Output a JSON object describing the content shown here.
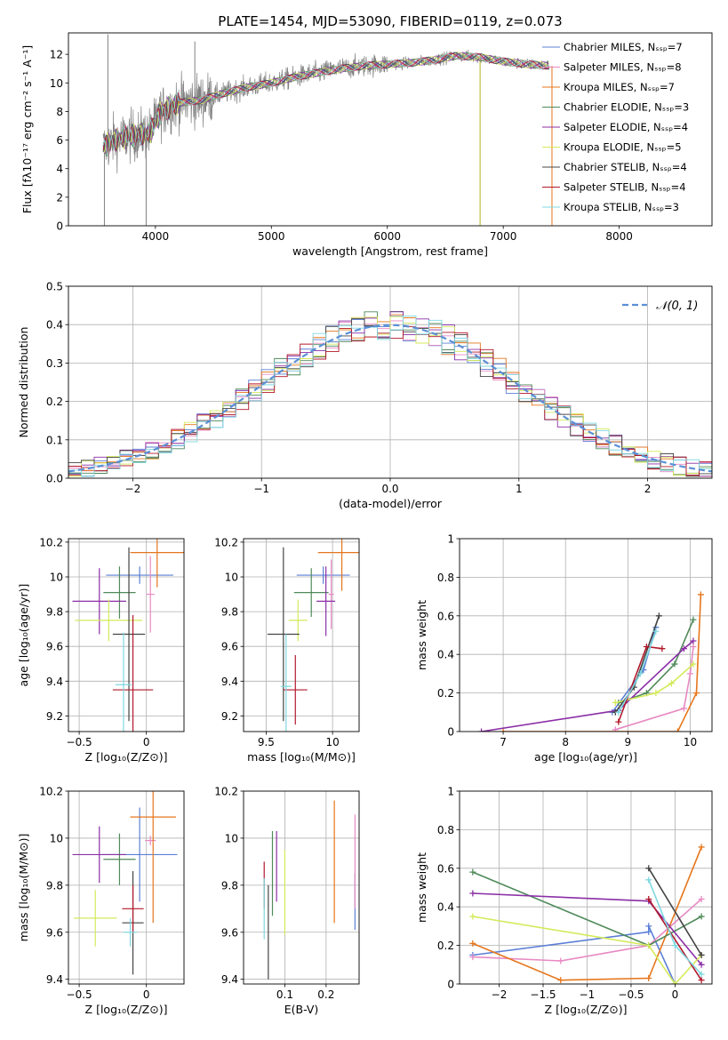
{
  "colors": [
    "#5b7fd6",
    "#e78ac3",
    "#e6761c",
    "#4f8a5a",
    "#8b2fa6",
    "#d4ea5a",
    "#444444",
    "#b2182b",
    "#7fd8e0"
  ],
  "chart_data": [
    {
      "id": "spectrum",
      "type": "line",
      "title": "PLATE=1454, MJD=53090, FIBERID=0119, z=0.073",
      "xlabel": "wavelength [Angstrom, rest frame]",
      "ylabel": "Flux [fλ10⁻¹⁷ erg cm⁻² s⁻¹ A⁻¹]",
      "xlim": [
        3250,
        8800
      ],
      "ylim": [
        0,
        13.5
      ],
      "xticks": [
        4000,
        5000,
        6000,
        7000,
        8000
      ],
      "yticks": [
        0,
        2,
        4,
        6,
        8,
        10,
        12
      ],
      "legend_loc": "right",
      "legend": [
        "Chabrier MILES, Nₛₛₚ=7",
        "Salpeter MILES, Nₛₛₚ=8",
        "Kroupa MILES, Nₛₛₚ=7",
        "Chabrier ELODIE, Nₛₛₚ=3",
        "Salpeter ELODIE, Nₛₛₚ=4",
        "Kroupa ELODIE, Nₛₛₚ=5",
        "Chabrier STELIB, Nₛₛₚ=4",
        "Salpeter STELIB, Nₛₛₚ=4",
        "Kroupa STELIB, Nₛₛₚ=3"
      ],
      "data_color": "#808080",
      "continuum": [
        [
          3550,
          5.5
        ],
        [
          3650,
          6.0
        ],
        [
          3800,
          6.3
        ],
        [
          3950,
          6.5
        ],
        [
          4050,
          8.0
        ],
        [
          4200,
          8.6
        ],
        [
          4400,
          8.8
        ],
        [
          4600,
          9.3
        ],
        [
          4800,
          9.7
        ],
        [
          5000,
          10.0
        ],
        [
          5200,
          10.4
        ],
        [
          5400,
          10.7
        ],
        [
          5600,
          11.0
        ],
        [
          5800,
          11.2
        ],
        [
          6000,
          11.3
        ],
        [
          6200,
          11.4
        ],
        [
          6400,
          11.6
        ],
        [
          6600,
          11.9
        ],
        [
          6800,
          11.8
        ],
        [
          7000,
          11.5
        ],
        [
          7200,
          11.3
        ],
        [
          7400,
          11.2
        ]
      ],
      "spikes": [
        [
          3560,
          0.0
        ],
        [
          3590,
          13.4
        ],
        [
          3920,
          0.0
        ],
        [
          4340,
          12.9
        ],
        [
          6800,
          0.0
        ],
        [
          7420,
          0.0
        ]
      ]
    },
    {
      "id": "residuals",
      "type": "area",
      "xlabel": "(data-model)/error",
      "ylabel": "Normed distribution",
      "xlim": [
        -2.5,
        2.5
      ],
      "ylim": [
        0,
        0.5
      ],
      "xticks": [
        -2,
        -1,
        0,
        1,
        2
      ],
      "yticks": [
        0.0,
        0.1,
        0.2,
        0.3,
        0.4,
        0.5
      ],
      "grid": true,
      "legend_loc": "top-right",
      "legend_label": "𝒩(0, 1)",
      "reference": {
        "name": "𝒩(0, 1)",
        "mean": 0,
        "sd": 1
      },
      "bin_width": 0.1
    },
    {
      "id": "age_vs_Z",
      "type": "scatter",
      "xlabel": "Z [log₁₀(Z/Z⊙)]",
      "ylabel": "age  [log₁₀(age/yr)]",
      "xlim": [
        -0.58,
        0.28
      ],
      "ylim": [
        9.11,
        10.22
      ],
      "xticks": [
        -0.5,
        0.0
      ],
      "yticks": [
        9.2,
        9.4,
        9.6,
        9.8,
        10.0,
        10.2
      ],
      "grid": true,
      "points": [
        {
          "x": -0.05,
          "y": 10.01,
          "xerr": 0.25,
          "yerr": 0.05
        },
        {
          "x": 0.03,
          "y": 9.9,
          "xerr": 0.03,
          "yerr": 0.22
        },
        {
          "x": 0.08,
          "y": 10.14,
          "xerr": 0.2,
          "yerr": 0.2
        },
        {
          "x": -0.2,
          "y": 9.91,
          "xerr": 0.12,
          "yerr": 0.15
        },
        {
          "x": -0.35,
          "y": 9.86,
          "xerr": 0.2,
          "yerr": 0.19
        },
        {
          "x": -0.28,
          "y": 9.75,
          "xerr": 0.25,
          "yerr": 0.12
        },
        {
          "x": -0.13,
          "y": 9.67,
          "xerr": 0.12,
          "yerr": 0.5
        },
        {
          "x": -0.1,
          "y": 9.35,
          "xerr": 0.15,
          "yerr": 0.43
        },
        {
          "x": -0.17,
          "y": 9.38,
          "xerr": 0.06,
          "yerr": 0.3
        }
      ]
    },
    {
      "id": "age_vs_mass",
      "type": "scatter",
      "xlabel": "mass [log₁₀(M/M⊙)]",
      "ylabel": "",
      "xlim": [
        9.33,
        10.2
      ],
      "ylim": [
        9.11,
        10.22
      ],
      "xticks": [
        9.5,
        10.0
      ],
      "yticks": [
        9.2,
        9.4,
        9.6,
        9.8,
        10.0,
        10.2
      ],
      "grid": true,
      "points": [
        {
          "x": 9.93,
          "y": 10.01,
          "xerr": 0.2,
          "yerr": 0.05
        },
        {
          "x": 9.99,
          "y": 9.9,
          "xerr": 0.02,
          "yerr": 0.2
        },
        {
          "x": 10.07,
          "y": 10.14,
          "xerr": 0.18,
          "yerr": 0.22
        },
        {
          "x": 9.84,
          "y": 9.91,
          "xerr": 0.13,
          "yerr": 0.14
        },
        {
          "x": 9.95,
          "y": 9.86,
          "xerr": 0.07,
          "yerr": 0.2
        },
        {
          "x": 9.74,
          "y": 9.75,
          "xerr": 0.07,
          "yerr": 0.12
        },
        {
          "x": 9.63,
          "y": 9.67,
          "xerr": 0.12,
          "yerr": 0.5
        },
        {
          "x": 9.72,
          "y": 9.35,
          "xerr": 0.09,
          "yerr": 0.2
        },
        {
          "x": 9.65,
          "y": 9.37,
          "xerr": 0.04,
          "yerr": 0.3
        }
      ]
    },
    {
      "id": "weight_vs_age",
      "type": "line",
      "xlabel": "age  [log₁₀(age/yr)]",
      "ylabel": "mass weight",
      "xlim": [
        6.3,
        10.35
      ],
      "ylim": [
        0,
        1.0
      ],
      "xticks": [
        7,
        8,
        9,
        10
      ],
      "yticks": [
        0.0,
        0.2,
        0.4,
        0.6,
        0.8,
        1.0
      ],
      "grid": true,
      "series": [
        {
          "values": [
            [
              8.75,
              0.1
            ],
            [
              9.25,
              0.32
            ],
            [
              9.45,
              0.54
            ]
          ]
        },
        {
          "values": [
            [
              8.8,
              0.01
            ],
            [
              9.9,
              0.12
            ],
            [
              10.0,
              0.3
            ],
            [
              10.05,
              0.44
            ]
          ]
        },
        {
          "values": [
            [
              7.0,
              0.0
            ],
            [
              9.8,
              0.0
            ],
            [
              10.1,
              0.2
            ],
            [
              10.17,
              0.71
            ]
          ]
        },
        {
          "values": [
            [
              8.85,
              0.15
            ],
            [
              9.3,
              0.2
            ],
            [
              9.75,
              0.35
            ],
            [
              10.05,
              0.58
            ]
          ]
        },
        {
          "values": [
            [
              6.65,
              0.0
            ],
            [
              8.85,
              0.11
            ],
            [
              9.9,
              0.43
            ],
            [
              10.05,
              0.47
            ]
          ]
        },
        {
          "values": [
            [
              8.8,
              0.15
            ],
            [
              9.45,
              0.2
            ],
            [
              9.7,
              0.25
            ],
            [
              10.05,
              0.35
            ]
          ]
        },
        {
          "values": [
            [
              8.8,
              0.1
            ],
            [
              9.1,
              0.23
            ],
            [
              9.5,
              0.6
            ]
          ]
        },
        {
          "values": [
            [
              8.85,
              0.05
            ],
            [
              9.3,
              0.44
            ],
            [
              9.55,
              0.43
            ]
          ]
        },
        {
          "values": [
            [
              8.85,
              0.1
            ],
            [
              9.2,
              0.3
            ],
            [
              9.45,
              0.52
            ]
          ]
        }
      ]
    },
    {
      "id": "mass_vs_Z",
      "type": "scatter",
      "xlabel": "Z [log₁₀(Z/Z⊙)]",
      "ylabel": "mass [log₁₀(M/M⊙)]",
      "xlim": [
        -0.58,
        0.28
      ],
      "ylim": [
        9.38,
        10.2
      ],
      "xticks": [
        -0.5,
        0.0
      ],
      "yticks": [
        9.4,
        9.6,
        9.8,
        10.0,
        10.2
      ],
      "grid": true,
      "points": [
        {
          "x": -0.05,
          "y": 9.93,
          "xerr": 0.28,
          "yerr": 0.2
        },
        {
          "x": 0.03,
          "y": 9.99,
          "xerr": 0.04,
          "yerr": 0.02
        },
        {
          "x": 0.05,
          "y": 10.09,
          "xerr": 0.17,
          "yerr": 0.45
        },
        {
          "x": -0.2,
          "y": 9.91,
          "xerr": 0.12,
          "yerr": 0.11
        },
        {
          "x": -0.35,
          "y": 9.93,
          "xerr": 0.2,
          "yerr": 0.12
        },
        {
          "x": -0.38,
          "y": 9.66,
          "xerr": 0.16,
          "yerr": 0.12
        },
        {
          "x": -0.1,
          "y": 9.64,
          "xerr": 0.08,
          "yerr": 0.22
        },
        {
          "x": -0.1,
          "y": 9.7,
          "xerr": 0.08,
          "yerr": 0.1
        },
        {
          "x": -0.12,
          "y": 9.6,
          "xerr": 0.05,
          "yerr": 0.06
        }
      ]
    },
    {
      "id": "mass_vs_ebv",
      "type": "scatter",
      "xlabel": "E(B-V)",
      "ylabel": "",
      "xlim": [
        0.0,
        0.28
      ],
      "ylim": [
        9.38,
        10.2
      ],
      "xticks": [
        0.1,
        0.2
      ],
      "yticks": [
        9.4,
        9.6,
        9.8,
        10.0,
        10.2
      ],
      "grid": true,
      "points": [
        {
          "x": 0.27,
          "y": 9.73,
          "xerr": 0.0,
          "yerr": 0.12
        },
        {
          "x": 0.27,
          "y": 9.9,
          "xerr": 0.0,
          "yerr": 0.2
        },
        {
          "x": 0.22,
          "y": 9.9,
          "xerr": 0.0,
          "yerr": 0.26
        },
        {
          "x": 0.07,
          "y": 9.85,
          "xerr": 0.0,
          "yerr": 0.18
        },
        {
          "x": 0.08,
          "y": 9.88,
          "xerr": 0.0,
          "yerr": 0.15
        },
        {
          "x": 0.1,
          "y": 9.77,
          "xerr": 0.0,
          "yerr": 0.18
        },
        {
          "x": 0.06,
          "y": 9.6,
          "xerr": 0.0,
          "yerr": 0.2
        },
        {
          "x": 0.05,
          "y": 9.8,
          "xerr": 0.0,
          "yerr": 0.1
        },
        {
          "x": 0.05,
          "y": 9.7,
          "xerr": 0.0,
          "yerr": 0.13
        }
      ]
    },
    {
      "id": "weight_vs_Z",
      "type": "line",
      "xlabel": "Z [log₁₀(Z/Z⊙)]",
      "ylabel": "mass weight",
      "xlim": [
        -2.45,
        0.42
      ],
      "ylim": [
        0,
        1.0
      ],
      "xticks": [
        -2.0,
        -1.5,
        -1.0,
        -0.5,
        0.0
      ],
      "yticks": [
        0.0,
        0.2,
        0.4,
        0.6,
        0.8,
        1.0
      ],
      "grid": true,
      "series": [
        {
          "values": [
            [
              -2.3,
              0.15
            ],
            [
              -0.3,
              0.27
            ],
            [
              -0.3,
              0.3
            ],
            [
              0.0,
              0.0
            ]
          ]
        },
        {
          "values": [
            [
              -2.3,
              0.14
            ],
            [
              -1.3,
              0.12
            ],
            [
              -0.3,
              0.2
            ],
            [
              0.3,
              0.44
            ]
          ]
        },
        {
          "values": [
            [
              -2.3,
              0.21
            ],
            [
              -1.3,
              0.02
            ],
            [
              -0.3,
              0.03
            ],
            [
              0.3,
              0.71
            ]
          ]
        },
        {
          "values": [
            [
              -2.3,
              0.58
            ],
            [
              -0.3,
              0.2
            ],
            [
              0.3,
              0.35
            ]
          ]
        },
        {
          "values": [
            [
              -2.3,
              0.47
            ],
            [
              -0.3,
              0.43
            ],
            [
              0.3,
              0.1
            ]
          ]
        },
        {
          "values": [
            [
              -2.3,
              0.35
            ],
            [
              -0.3,
              0.2
            ],
            [
              0.0,
              0.0
            ],
            [
              0.3,
              0.15
            ]
          ]
        },
        {
          "values": [
            [
              -0.3,
              0.6
            ],
            [
              0.3,
              0.15
            ]
          ]
        },
        {
          "values": [
            [
              -0.3,
              0.44
            ],
            [
              0.3,
              0.02
            ]
          ]
        },
        {
          "values": [
            [
              -0.3,
              0.54
            ],
            [
              0.0,
              0.2
            ],
            [
              0.3,
              0.05
            ]
          ]
        }
      ]
    }
  ]
}
